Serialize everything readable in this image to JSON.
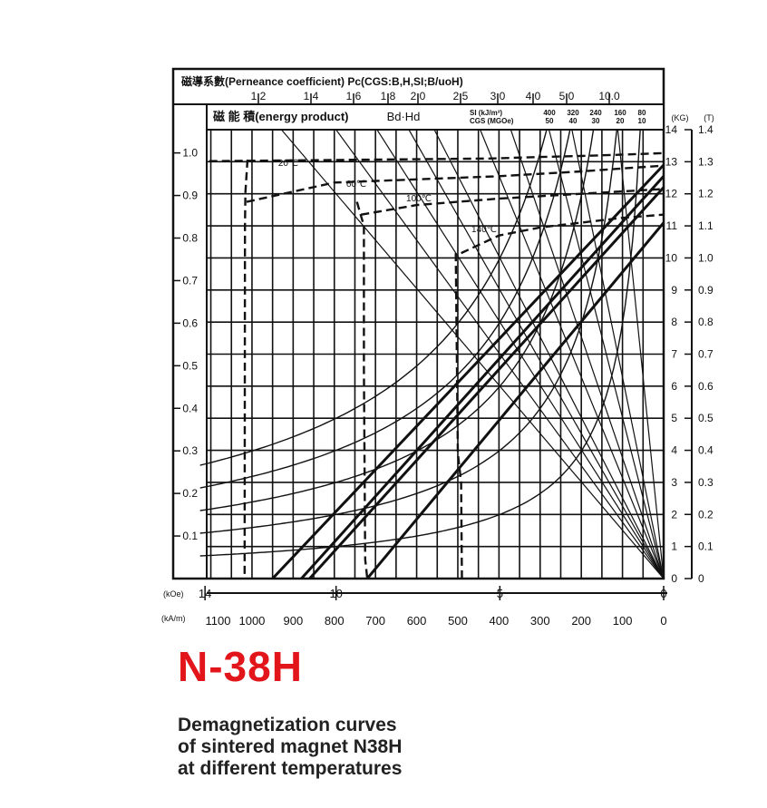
{
  "grade_title": "N-38H",
  "caption": [
    "Demagnetization curves",
    "of sintered magnet N38H",
    "at different temperatures"
  ],
  "chart_data": {
    "type": "line",
    "title": "",
    "permeance_title": "磁導系數(Perneance coefficient) Pc(CGS:B,H,SI;B/uoH)",
    "permeance_ticks": [
      "1.2",
      "1.4",
      "1.6",
      "1.8",
      "2.0",
      "2.5",
      "3.0",
      "4.0",
      "5.0",
      "10.0"
    ],
    "energy_title": "磁 能 積(energy product)",
    "energy_sub": "Bd·Hd",
    "energy_si_label": "SI    (kJ/m³)",
    "energy_cgs_label": "CGS (MGOe)",
    "energy_si_values": [
      "400",
      "320",
      "240",
      "160",
      "80"
    ],
    "energy_cgs_values": [
      "50",
      "40",
      "30",
      "20",
      "10"
    ],
    "y_left_ticks": [
      "0.1",
      "0.2",
      "0.3",
      "0.4",
      "0.5",
      "0.6",
      "0.7",
      "0.8",
      "0.9",
      "1.0"
    ],
    "y_kg_unit": "(KG)",
    "y_kg_ticks": [
      "0",
      "1",
      "2",
      "3",
      "4",
      "5",
      "6",
      "7",
      "8",
      "9",
      "10",
      "11",
      "12",
      "13",
      "14"
    ],
    "y_t_unit": "(T)",
    "y_t_ticks": [
      "0",
      "0.1",
      "0.2",
      "0.3",
      "0.4",
      "0.5",
      "0.6",
      "0.7",
      "0.8",
      "0.9",
      "1.0",
      "1.1",
      "1.2",
      "1.3",
      "1.4"
    ],
    "x_koe_unit": "(kOe)",
    "x_koe_ticks": [
      "14",
      "10",
      "5",
      "0"
    ],
    "x_kam_unit": "(kA/m)",
    "x_kam_ticks": [
      "1100",
      "1000",
      "900",
      "800",
      "700",
      "600",
      "500",
      "400",
      "300",
      "200",
      "100",
      "0"
    ],
    "xlim_kam": [
      1110,
      0
    ],
    "ylim_kg": [
      0,
      14
    ],
    "grid": true,
    "series": [
      {
        "name": "20℃",
        "style": "dashed",
        "points": [
          [
            1104,
            13.02
          ],
          [
            420,
            13.1
          ],
          [
            300,
            13.15
          ],
          [
            200,
            13.18
          ],
          [
            80,
            13.23
          ],
          [
            0,
            13.27
          ],
          [
            1011,
            13.07
          ],
          [
            1016,
            12.05
          ],
          [
            1017,
            11.0
          ],
          [
            1018,
            0
          ]
        ]
      },
      {
        "name": "60℃",
        "style": "dashed",
        "points": [
          [
            1013,
            11.75
          ],
          [
            800,
            12.35
          ],
          [
            600,
            12.45
          ],
          [
            400,
            12.55
          ],
          [
            200,
            12.7
          ],
          [
            0,
            12.88
          ],
          [
            745,
            11.75
          ],
          [
            728,
            11.0
          ],
          [
            728,
            6.5
          ],
          [
            725,
            0.6
          ],
          [
            720,
            0
          ]
        ]
      },
      {
        "name": "100℃",
        "style": "dashed",
        "points": [
          [
            735,
            11.35
          ],
          [
            600,
            11.65
          ],
          [
            400,
            11.85
          ],
          [
            200,
            12.0
          ],
          [
            0,
            12.15
          ],
          [
            505,
            10.15
          ],
          [
            500,
            3.9
          ],
          [
            492,
            3.0
          ],
          [
            490,
            0
          ]
        ]
      },
      {
        "name": "140℃",
        "style": "dashed",
        "points": [
          [
            492,
            10.15
          ],
          [
            400,
            10.7
          ],
          [
            300,
            10.95
          ],
          [
            200,
            11.1
          ],
          [
            100,
            11.25
          ],
          [
            0,
            11.35
          ]
        ]
      }
    ],
    "recoil_lines": [
      {
        "label": "20℃",
        "from": [
          0,
          12.9
        ],
        "to": [
          950,
          0
        ]
      },
      {
        "label": "60℃",
        "from": [
          0,
          12.55
        ],
        "to": [
          880,
          0
        ]
      },
      {
        "label": "100℃",
        "from": [
          0,
          12.2
        ],
        "to": [
          860,
          0
        ]
      },
      {
        "label": "140℃",
        "from": [
          0,
          11.1
        ],
        "to": [
          720,
          0
        ]
      }
    ],
    "energy_hyperbolae_mgoe": [
      10,
      20,
      30,
      40,
      50
    ],
    "permeance_coefficients": [
      1.2,
      1.4,
      1.6,
      1.8,
      2.0,
      2.5,
      3.0,
      4.0,
      5.0,
      10.0
    ]
  }
}
